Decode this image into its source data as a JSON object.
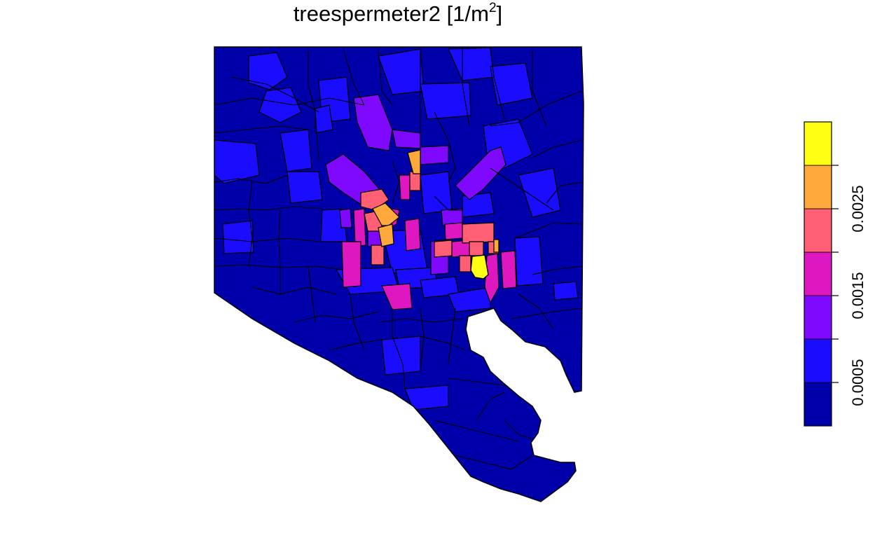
{
  "title": {
    "variable": "treespermeter2",
    "unit_open": "[",
    "unit_base": "1/m",
    "unit_exp": "2",
    "unit_close": "]"
  },
  "legend": {
    "breaks": [
      "0.0005",
      "0.0015",
      "0.0025"
    ],
    "classes": [
      {
        "color": "#0000AA"
      },
      {
        "color": "#1A0DFF"
      },
      {
        "color": "#7F09FF"
      },
      {
        "color": "#DF17C1"
      },
      {
        "color": "#FF5E73"
      },
      {
        "color": "#FFA83B"
      },
      {
        "color": "#FFFF14"
      }
    ]
  },
  "map": {
    "region": "Baltimore City",
    "shading": "choropleth of trees per square meter"
  }
}
